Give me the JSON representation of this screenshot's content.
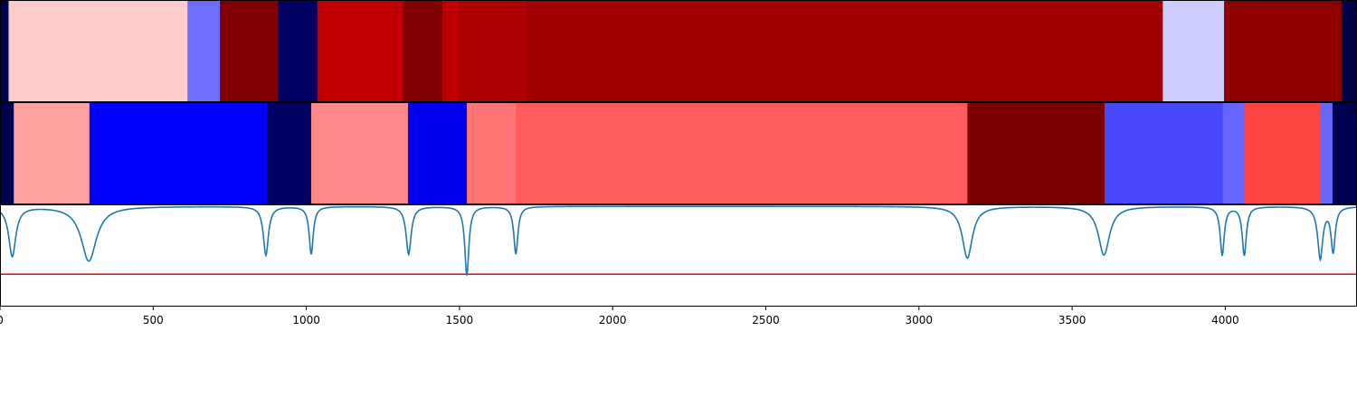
{
  "chart_data": [
    {
      "type": "heatmap",
      "x_range": [
        0,
        4430
      ],
      "colormap": "seismic",
      "segments": [
        {
          "start": 0,
          "end": 28,
          "color": "#000050"
        },
        {
          "start": 28,
          "end": 612,
          "color": "#ffcccc"
        },
        {
          "start": 612,
          "end": 718,
          "color": "#6e6eff"
        },
        {
          "start": 718,
          "end": 908,
          "color": "#800000"
        },
        {
          "start": 908,
          "end": 1036,
          "color": "#000064"
        },
        {
          "start": 1036,
          "end": 1316,
          "color": "#c00000"
        },
        {
          "start": 1316,
          "end": 1444,
          "color": "#800000"
        },
        {
          "start": 1444,
          "end": 1496,
          "color": "#c00000"
        },
        {
          "start": 1496,
          "end": 1718,
          "color": "#ad0000"
        },
        {
          "start": 1718,
          "end": 3796,
          "color": "#a00000"
        },
        {
          "start": 3796,
          "end": 3996,
          "color": "#ccccff"
        },
        {
          "start": 3996,
          "end": 4380,
          "color": "#8c0000"
        },
        {
          "start": 4380,
          "end": 4430,
          "color": "#000046"
        }
      ]
    },
    {
      "type": "heatmap",
      "x_range": [
        0,
        4430
      ],
      "colormap": "seismic",
      "segments": [
        {
          "start": 0,
          "end": 45,
          "color": "#000050"
        },
        {
          "start": 45,
          "end": 292,
          "color": "#ffa0a0"
        },
        {
          "start": 292,
          "end": 872,
          "color": "#0000ff"
        },
        {
          "start": 872,
          "end": 1016,
          "color": "#000064"
        },
        {
          "start": 1016,
          "end": 1332,
          "color": "#ff8888"
        },
        {
          "start": 1332,
          "end": 1524,
          "color": "#0000ee"
        },
        {
          "start": 1524,
          "end": 1684,
          "color": "#ff7474"
        },
        {
          "start": 1684,
          "end": 3158,
          "color": "#ff5c5c"
        },
        {
          "start": 3158,
          "end": 3606,
          "color": "#7c0000"
        },
        {
          "start": 3606,
          "end": 3992,
          "color": "#4848ff"
        },
        {
          "start": 3992,
          "end": 4062,
          "color": "#6666ff"
        },
        {
          "start": 4062,
          "end": 4312,
          "color": "#ff4444"
        },
        {
          "start": 4312,
          "end": 4350,
          "color": "#6666ff"
        },
        {
          "start": 4350,
          "end": 4430,
          "color": "#000050"
        }
      ]
    },
    {
      "type": "line",
      "x_range": [
        0,
        4430
      ],
      "y_range": [
        0,
        1
      ],
      "xticks": [
        0,
        500,
        1000,
        1500,
        2000,
        2500,
        3000,
        3500,
        4000
      ],
      "xtick_labels": [
        "0",
        "500",
        "1000",
        "1500",
        "2000",
        "2500",
        "3000",
        "3500",
        "4000"
      ],
      "threshold": 0.32,
      "threshold_color": "#e8181c",
      "line_color": "#1f77b4",
      "baseline": 0.99,
      "dips": [
        {
          "x": 40,
          "depth": 0.5,
          "width": 14
        },
        {
          "x": 290,
          "depth": 0.45,
          "width": 30
        },
        {
          "x": 868,
          "depth": 0.51,
          "width": 10
        },
        {
          "x": 1016,
          "depth": 0.52,
          "width": 8
        },
        {
          "x": 1334,
          "depth": 0.52,
          "width": 10
        },
        {
          "x": 1524,
          "depth": 0.31,
          "width": 8
        },
        {
          "x": 1684,
          "depth": 0.52,
          "width": 8
        },
        {
          "x": 3158,
          "depth": 0.48,
          "width": 20
        },
        {
          "x": 3604,
          "depth": 0.51,
          "width": 22
        },
        {
          "x": 3990,
          "depth": 0.51,
          "width": 8
        },
        {
          "x": 4062,
          "depth": 0.51,
          "width": 8
        },
        {
          "x": 4310,
          "depth": 0.48,
          "width": 10
        },
        {
          "x": 4352,
          "depth": 0.55,
          "width": 8
        }
      ]
    }
  ]
}
